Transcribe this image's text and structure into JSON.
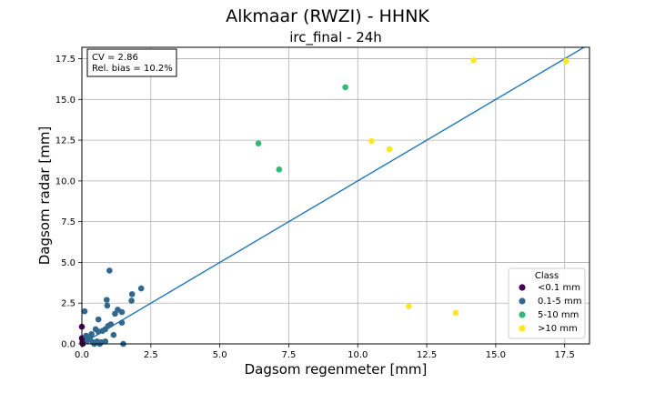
{
  "chart_data": {
    "type": "scatter",
    "suptitle": "Alkmaar (RWZI) - HHNK",
    "title": "irc_final - 24h",
    "xlabel": "Dagsom regenmeter [mm]",
    "ylabel": "Dagsom radar [mm]",
    "xlim": [
      0,
      18.4
    ],
    "ylim": [
      0,
      18.2
    ],
    "xticks": [
      "0.0",
      "2.5",
      "5.0",
      "7.5",
      "10.0",
      "12.5",
      "15.0",
      "17.5"
    ],
    "yticks": [
      "0.0",
      "2.5",
      "5.0",
      "7.5",
      "10.0",
      "12.5",
      "15.0",
      "17.5"
    ],
    "grid": true,
    "reference_line": {
      "x": [
        0,
        18.4
      ],
      "y": [
        0,
        18.4
      ],
      "color": "#1f77b4"
    },
    "annotation": {
      "line1": "CV = 2.86",
      "line2": "Rel. bias = 10.2%",
      "position": "top-left"
    },
    "legend": {
      "title": "Class",
      "position": "bottom-right"
    },
    "series": [
      {
        "name": "<0.1 mm",
        "color": "#440154",
        "points": [
          [
            0.0,
            1.05
          ],
          [
            0.0,
            0.35
          ],
          [
            0.02,
            0.1
          ],
          [
            0.05,
            0.25
          ],
          [
            0.03,
            0.0
          ]
        ]
      },
      {
        "name": "0.1-5 mm",
        "color": "#31688e",
        "points": [
          [
            0.1,
            2.0
          ],
          [
            0.15,
            0.5
          ],
          [
            0.2,
            0.2
          ],
          [
            0.3,
            0.4
          ],
          [
            0.35,
            0.6
          ],
          [
            0.4,
            0.1
          ],
          [
            0.45,
            0.0
          ],
          [
            0.5,
            0.9
          ],
          [
            0.55,
            0.15
          ],
          [
            0.6,
            0.75
          ],
          [
            0.6,
            1.5
          ],
          [
            0.65,
            0.0
          ],
          [
            0.7,
            0.1
          ],
          [
            0.75,
            0.8
          ],
          [
            0.85,
            0.9
          ],
          [
            0.85,
            0.15
          ],
          [
            0.9,
            2.7
          ],
          [
            0.92,
            2.35
          ],
          [
            0.95,
            1.1
          ],
          [
            1.0,
            4.5
          ],
          [
            1.05,
            1.2
          ],
          [
            1.15,
            0.55
          ],
          [
            1.2,
            1.85
          ],
          [
            1.3,
            2.1
          ],
          [
            1.45,
            1.3
          ],
          [
            1.45,
            1.95
          ],
          [
            1.5,
            0.0
          ],
          [
            1.8,
            2.65
          ],
          [
            1.82,
            3.05
          ],
          [
            2.15,
            3.4
          ]
        ]
      },
      {
        "name": "5-10 mm",
        "color": "#35b779",
        "points": [
          [
            6.4,
            12.3
          ],
          [
            7.15,
            10.7
          ],
          [
            9.55,
            15.75
          ]
        ]
      },
      {
        "name": ">10 mm",
        "color": "#fde725",
        "points": [
          [
            10.5,
            12.45
          ],
          [
            11.15,
            11.95
          ],
          [
            11.85,
            2.3
          ],
          [
            13.55,
            1.9
          ],
          [
            14.2,
            17.4
          ],
          [
            17.55,
            17.35
          ]
        ]
      }
    ]
  }
}
